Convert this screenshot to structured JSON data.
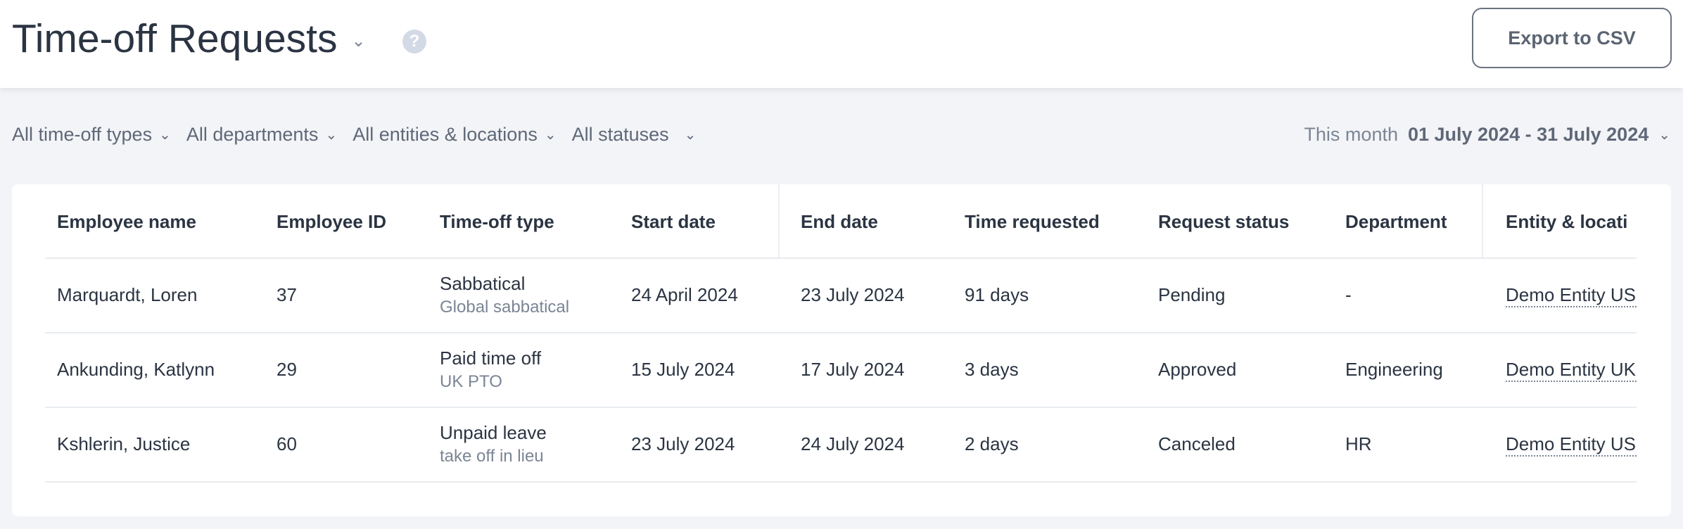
{
  "header": {
    "title": "Time-off Requests",
    "export_label": "Export to CSV",
    "help_icon": "question-circle-icon"
  },
  "filters": [
    {
      "label": "All time-off types"
    },
    {
      "label": "All departments"
    },
    {
      "label": "All entities & locations"
    },
    {
      "label": "All statuses"
    }
  ],
  "date_range": {
    "label": "This month",
    "value": "01 July 2024 - 31 July 2024"
  },
  "table": {
    "columns": [
      "Employee name",
      "Employee ID",
      "Time-off type",
      "Start date",
      "End date",
      "Time requested",
      "Request status",
      "Department",
      "Entity & locati"
    ],
    "rows": [
      {
        "name": "Marquardt, Loren",
        "id": "37",
        "type": "Sabbatical",
        "policy": "Global sabbatical",
        "start": "24 April 2024",
        "end": "23 July 2024",
        "time": "91 days",
        "status": "Pending",
        "department": "-",
        "entity": "Demo Entity US"
      },
      {
        "name": "Ankunding, Katlynn",
        "id": "29",
        "type": "Paid time off",
        "policy": "UK PTO",
        "start": "15 July 2024",
        "end": "17 July 2024",
        "time": "3 days",
        "status": "Approved",
        "department": "Engineering",
        "entity": "Demo Entity UK"
      },
      {
        "name": "Kshlerin, Justice",
        "id": "60",
        "type": "Unpaid leave",
        "policy": "take off in lieu",
        "start": "23 July 2024",
        "end": "24 July 2024",
        "time": "2 days",
        "status": "Canceled",
        "department": "HR",
        "entity": "Demo Entity US"
      }
    ]
  }
}
